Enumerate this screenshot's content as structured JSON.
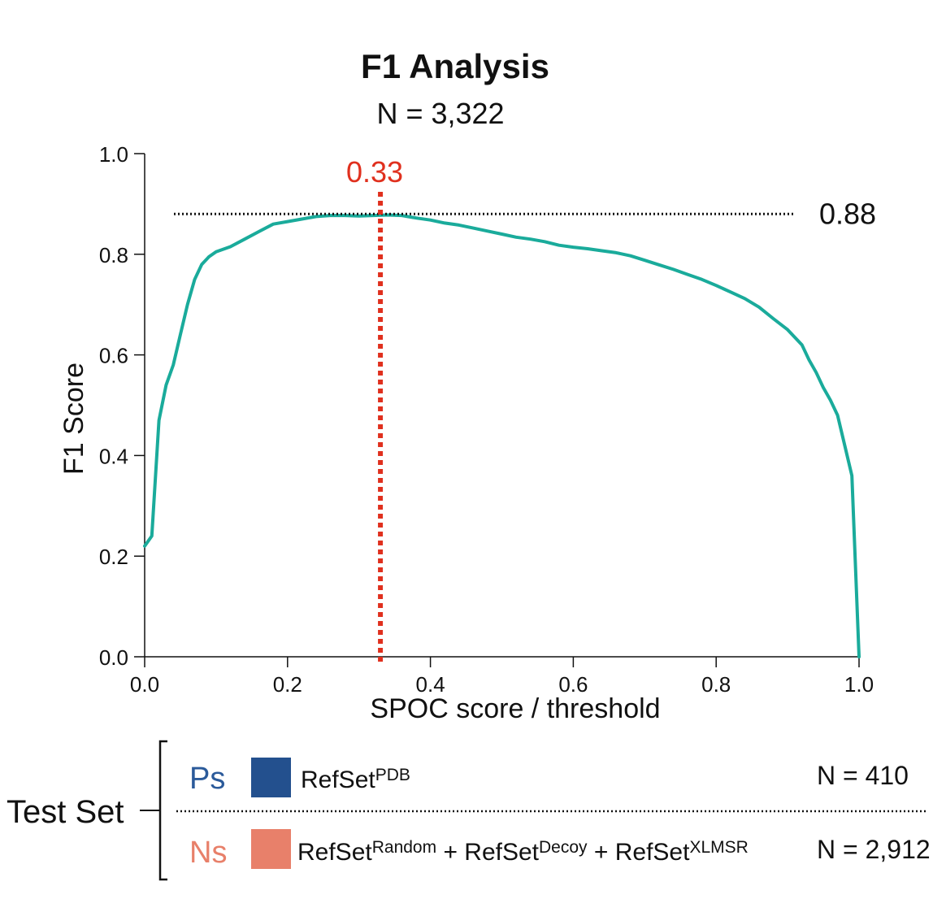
{
  "chart_data": {
    "type": "line",
    "title": "F1 Analysis",
    "subtitle": "N = 3,322",
    "xlabel": "SPOC score / threshold",
    "ylabel": "F1 Score",
    "xlim": [
      0.0,
      1.0
    ],
    "ylim": [
      0.0,
      1.0
    ],
    "x_ticks": [
      "0.0",
      "0.2",
      "0.4",
      "0.6",
      "0.8",
      "1.0"
    ],
    "y_ticks": [
      "0.0",
      "0.2",
      "0.4",
      "0.6",
      "0.8",
      "1.0"
    ],
    "grid": false,
    "line_color": "#1aab9b",
    "threshold_color": "#e0301e",
    "series": [
      {
        "x": [
          0.0,
          0.01,
          0.02,
          0.03,
          0.04,
          0.05,
          0.06,
          0.07,
          0.08,
          0.09,
          0.1,
          0.12,
          0.14,
          0.16,
          0.18,
          0.2,
          0.22,
          0.24,
          0.26,
          0.28,
          0.3,
          0.32,
          0.34,
          0.36,
          0.38,
          0.4,
          0.42,
          0.44,
          0.46,
          0.48,
          0.5,
          0.52,
          0.54,
          0.56,
          0.58,
          0.6,
          0.62,
          0.64,
          0.66,
          0.68,
          0.7,
          0.72,
          0.74,
          0.76,
          0.78,
          0.8,
          0.82,
          0.84,
          0.86,
          0.88,
          0.9,
          0.92,
          0.93,
          0.94,
          0.95,
          0.96,
          0.97,
          0.98,
          0.99,
          0.995,
          1.0
        ],
        "values": [
          0.22,
          0.24,
          0.47,
          0.54,
          0.58,
          0.64,
          0.7,
          0.75,
          0.78,
          0.795,
          0.805,
          0.815,
          0.83,
          0.845,
          0.86,
          0.865,
          0.87,
          0.875,
          0.877,
          0.877,
          0.876,
          0.877,
          0.878,
          0.877,
          0.872,
          0.868,
          0.862,
          0.858,
          0.852,
          0.846,
          0.84,
          0.834,
          0.83,
          0.825,
          0.818,
          0.814,
          0.811,
          0.807,
          0.803,
          0.797,
          0.788,
          0.779,
          0.77,
          0.76,
          0.75,
          0.738,
          0.725,
          0.712,
          0.695,
          0.672,
          0.65,
          0.62,
          0.59,
          0.565,
          0.535,
          0.51,
          0.48,
          0.42,
          0.36,
          0.18,
          0.0
        ]
      }
    ],
    "annotations": {
      "best_threshold": 0.33,
      "best_threshold_label": "0.33",
      "max_f1": 0.88,
      "max_f1_label": "0.88"
    }
  },
  "legend": {
    "group_label": "Test Set",
    "positive": {
      "tag": "Ps",
      "tag_color": "#2b5a9a",
      "swatch_color": "#23508e",
      "name_parts": [
        {
          "text": "RefSet",
          "sup": false
        },
        {
          "text": "PDB",
          "sup": true
        }
      ],
      "count": "N = 410"
    },
    "negative": {
      "tag": "Ns",
      "tag_color": "#e8806a",
      "swatch_color": "#e8806a",
      "name_parts": [
        {
          "text": "RefSet",
          "sup": false
        },
        {
          "text": "Random",
          "sup": true
        },
        {
          "text": " + RefSet",
          "sup": false
        },
        {
          "text": "Decoy",
          "sup": true
        },
        {
          "text": " + RefSet",
          "sup": false
        },
        {
          "text": "XLMSR",
          "sup": true
        }
      ],
      "count": "N = 2,912"
    }
  }
}
